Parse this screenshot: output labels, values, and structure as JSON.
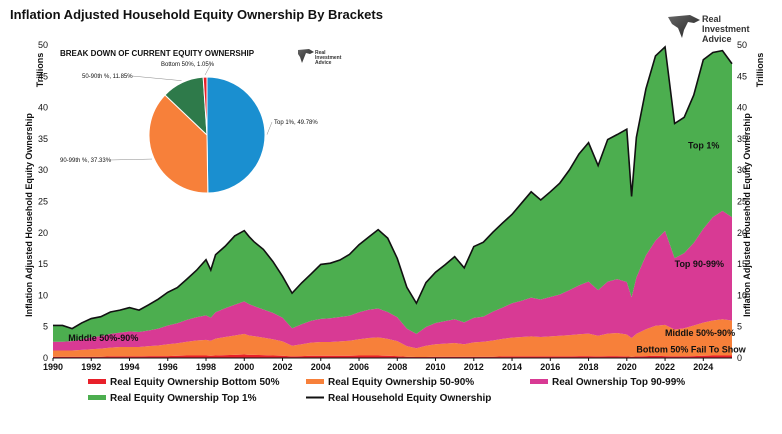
{
  "chart_data": {
    "type": "area",
    "stacked": true,
    "title": "Inflation Adjusted Household Equity Ownership By Brackets",
    "ylabel": "Inflation Adjusted Household Equity Ownership",
    "y_unit": "Trillions",
    "ylim": [
      0,
      50
    ],
    "yticks": [
      0,
      5,
      10,
      15,
      20,
      25,
      30,
      35,
      40,
      45,
      50
    ],
    "xlim": [
      1990,
      2025.5
    ],
    "xticks": [
      1990,
      1992,
      1994,
      1996,
      1998,
      2000,
      2002,
      2004,
      2006,
      2008,
      2010,
      2012,
      2014,
      2016,
      2018,
      2020,
      2022,
      2024
    ],
    "x": [
      1990,
      1990.5,
      1991,
      1991.5,
      1992,
      1992.5,
      1993,
      1993.5,
      1994,
      1994.5,
      1995,
      1995.5,
      1996,
      1996.5,
      1997,
      1997.5,
      1998,
      1998.25,
      1998.5,
      1999,
      1999.5,
      2000,
      2000.25,
      2000.5,
      2001,
      2001.5,
      2002,
      2002.5,
      2003,
      2003.5,
      2004,
      2004.5,
      2005,
      2005.5,
      2006,
      2006.5,
      2007,
      2007.5,
      2008,
      2008.5,
      2009,
      2009.5,
      2010,
      2010.5,
      2011,
      2011.5,
      2012,
      2012.5,
      2013,
      2013.5,
      2014,
      2014.5,
      2015,
      2015.5,
      2016,
      2016.5,
      2017,
      2017.5,
      2018,
      2018.5,
      2019,
      2019.5,
      2020,
      2020.25,
      2020.5,
      2021,
      2021.5,
      2022,
      2022.5,
      2023,
      2023.5,
      2024,
      2024.5,
      2025,
      2025.5
    ],
    "series": [
      {
        "name": "Real Equity Ownership Bottom 50%",
        "color": "#e8202a",
        "values": [
          0.2,
          0.2,
          0.2,
          0.2,
          0.2,
          0.2,
          0.25,
          0.25,
          0.25,
          0.25,
          0.3,
          0.3,
          0.3,
          0.35,
          0.4,
          0.4,
          0.4,
          0.35,
          0.4,
          0.45,
          0.5,
          0.55,
          0.5,
          0.5,
          0.45,
          0.4,
          0.35,
          0.25,
          0.3,
          0.35,
          0.35,
          0.35,
          0.35,
          0.35,
          0.4,
          0.4,
          0.4,
          0.35,
          0.3,
          0.2,
          0.15,
          0.15,
          0.2,
          0.2,
          0.2,
          0.2,
          0.2,
          0.2,
          0.2,
          0.25,
          0.25,
          0.25,
          0.25,
          0.25,
          0.25,
          0.25,
          0.25,
          0.3,
          0.3,
          0.25,
          0.3,
          0.3,
          0.25,
          0.2,
          0.25,
          0.3,
          0.35,
          0.3,
          0.25,
          0.25,
          0.3,
          0.35,
          0.4,
          0.4,
          0.4
        ]
      },
      {
        "name": "Real Equity Ownership 50-90%",
        "color": "#f7803a",
        "values": [
          1.0,
          1.0,
          1.0,
          1.1,
          1.2,
          1.3,
          1.4,
          1.5,
          1.5,
          1.5,
          1.6,
          1.7,
          1.9,
          2.0,
          2.2,
          2.4,
          2.5,
          2.4,
          2.7,
          2.9,
          3.1,
          3.3,
          3.1,
          3.0,
          2.8,
          2.6,
          2.3,
          1.7,
          1.9,
          2.1,
          2.2,
          2.2,
          2.3,
          2.4,
          2.6,
          2.8,
          2.9,
          2.7,
          2.4,
          1.7,
          1.4,
          1.8,
          2.0,
          2.1,
          2.2,
          2.0,
          2.3,
          2.4,
          2.6,
          2.8,
          3.0,
          3.1,
          3.2,
          3.1,
          3.2,
          3.3,
          3.4,
          3.5,
          3.6,
          3.3,
          3.6,
          3.7,
          3.5,
          3.0,
          3.6,
          4.3,
          4.8,
          5.0,
          4.3,
          4.5,
          4.9,
          5.3,
          5.6,
          5.8,
          5.6
        ]
      },
      {
        "name": "Real Ownership Top 90-99%",
        "color": "#d83a94",
        "values": [
          1.4,
          1.4,
          1.5,
          1.7,
          1.9,
          2.0,
          2.2,
          2.3,
          2.5,
          2.4,
          2.5,
          2.7,
          3.0,
          3.2,
          3.5,
          3.7,
          3.9,
          3.7,
          4.2,
          4.6,
          4.9,
          5.2,
          5.0,
          4.8,
          4.5,
          4.2,
          3.8,
          2.8,
          3.2,
          3.5,
          3.7,
          3.8,
          3.9,
          4.0,
          4.3,
          4.5,
          4.6,
          4.3,
          3.8,
          2.8,
          2.3,
          3.0,
          3.4,
          3.6,
          3.8,
          3.5,
          3.9,
          4.0,
          4.6,
          5.0,
          5.5,
          5.8,
          6.2,
          6.0,
          6.3,
          6.6,
          7.2,
          7.8,
          8.3,
          7.3,
          8.3,
          8.6,
          8.4,
          6.5,
          9.0,
          11.8,
          13.6,
          15.0,
          11.4,
          12.0,
          13.2,
          15.0,
          16.5,
          17.3,
          16.5
        ]
      },
      {
        "name": "Real Equity Ownership Top 1%",
        "color": "#4cae4f",
        "values": [
          2.6,
          2.6,
          2.0,
          2.6,
          3.0,
          3.1,
          3.5,
          3.6,
          3.8,
          3.5,
          4.1,
          4.7,
          5.3,
          5.7,
          6.5,
          7.5,
          8.9,
          7.6,
          9.2,
          9.9,
          11.0,
          11.3,
          10.8,
          10.3,
          9.6,
          8.2,
          6.6,
          5.6,
          6.6,
          7.5,
          8.7,
          8.8,
          9.1,
          9.8,
          10.8,
          11.6,
          12.6,
          11.8,
          9.4,
          6.6,
          4.9,
          7.1,
          8.1,
          9.0,
          10.0,
          8.7,
          11.4,
          11.9,
          12.7,
          13.5,
          14.2,
          15.6,
          16.9,
          15.9,
          16.8,
          17.8,
          19.2,
          21.0,
          22.2,
          19.9,
          22.7,
          23.1,
          24.4,
          16.1,
          22.4,
          26.6,
          29.5,
          29.4,
          21.5,
          21.7,
          23.6,
          27.0,
          26.3,
          25.6,
          24.5
        ]
      }
    ],
    "total_line": {
      "name": "Real Household Equity Ownership",
      "color": "#111111"
    },
    "annotations": [
      {
        "text": "Top 1%",
        "x": 2023.2,
        "y": 33.5
      },
      {
        "text": "Top 90-99%",
        "x": 2022.5,
        "y": 14.5
      },
      {
        "text": "Middle 50%-90%",
        "x": 2022.0,
        "y": 3.5
      },
      {
        "text": "Bottom 50% Fail To Show",
        "x": 2020.5,
        "y": 0.9
      },
      {
        "text": "Middle 50%-90%",
        "x": 1990.8,
        "y": 2.7
      }
    ],
    "legend_position": "bottom",
    "grid": false,
    "inset_pie": {
      "type": "pie",
      "title": "BREAK DOWN OF CURRENT EQUITY OWNERSHIP",
      "slices": [
        {
          "label": "Top 1%, 49.78%",
          "value": 49.78,
          "color": "#1a8fd0"
        },
        {
          "label": "90-99th %, 37.33%",
          "value": 37.33,
          "color": "#f7803a"
        },
        {
          "label": "50-90th %, 11.85%",
          "value": 11.85,
          "color": "#2e7a4a"
        },
        {
          "label": "Bottom 50%, 1.05%",
          "value": 1.05,
          "color": "#e8202a"
        }
      ]
    }
  },
  "logo": {
    "line1": "Real",
    "line2": "Investment",
    "line3": "Advice",
    "icon": "eagle-icon"
  }
}
